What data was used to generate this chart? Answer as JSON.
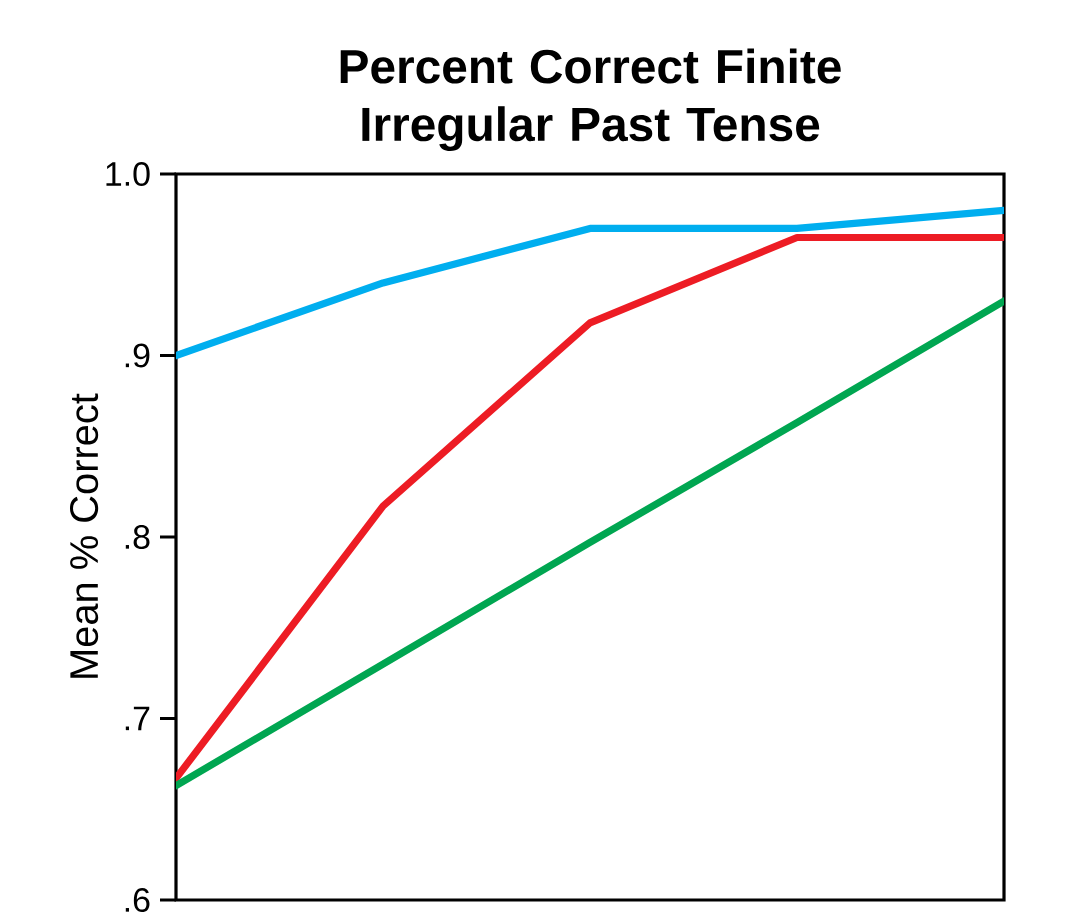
{
  "chart_data": {
    "type": "line",
    "title": "Percent Correct Finite Irregular Past Tense",
    "ylabel": "Mean % Correct",
    "categories": [
      null,
      null,
      null,
      null,
      null
    ],
    "series": [
      {
        "color": "#00aeef",
        "values": [
          0.9,
          0.94,
          0.97,
          0.97,
          0.98
        ]
      },
      {
        "color": "#ed1c24",
        "values": [
          0.667,
          0.817,
          0.918,
          0.965,
          0.965
        ]
      },
      {
        "color": "#00a651",
        "values": [
          0.663,
          0.73,
          0.797,
          0.863,
          0.93
        ]
      }
    ],
    "ylim": [
      0.6,
      1.0
    ],
    "yticks": [
      {
        "value": 0.6,
        "label": ".6"
      },
      {
        "value": 0.7,
        "label": ".7"
      },
      {
        "value": 0.8,
        "label": ".8"
      },
      {
        "value": 0.9,
        "label": ".9"
      },
      {
        "value": 1.0,
        "label": "1.0"
      }
    ],
    "tick_labels": "y"
  }
}
